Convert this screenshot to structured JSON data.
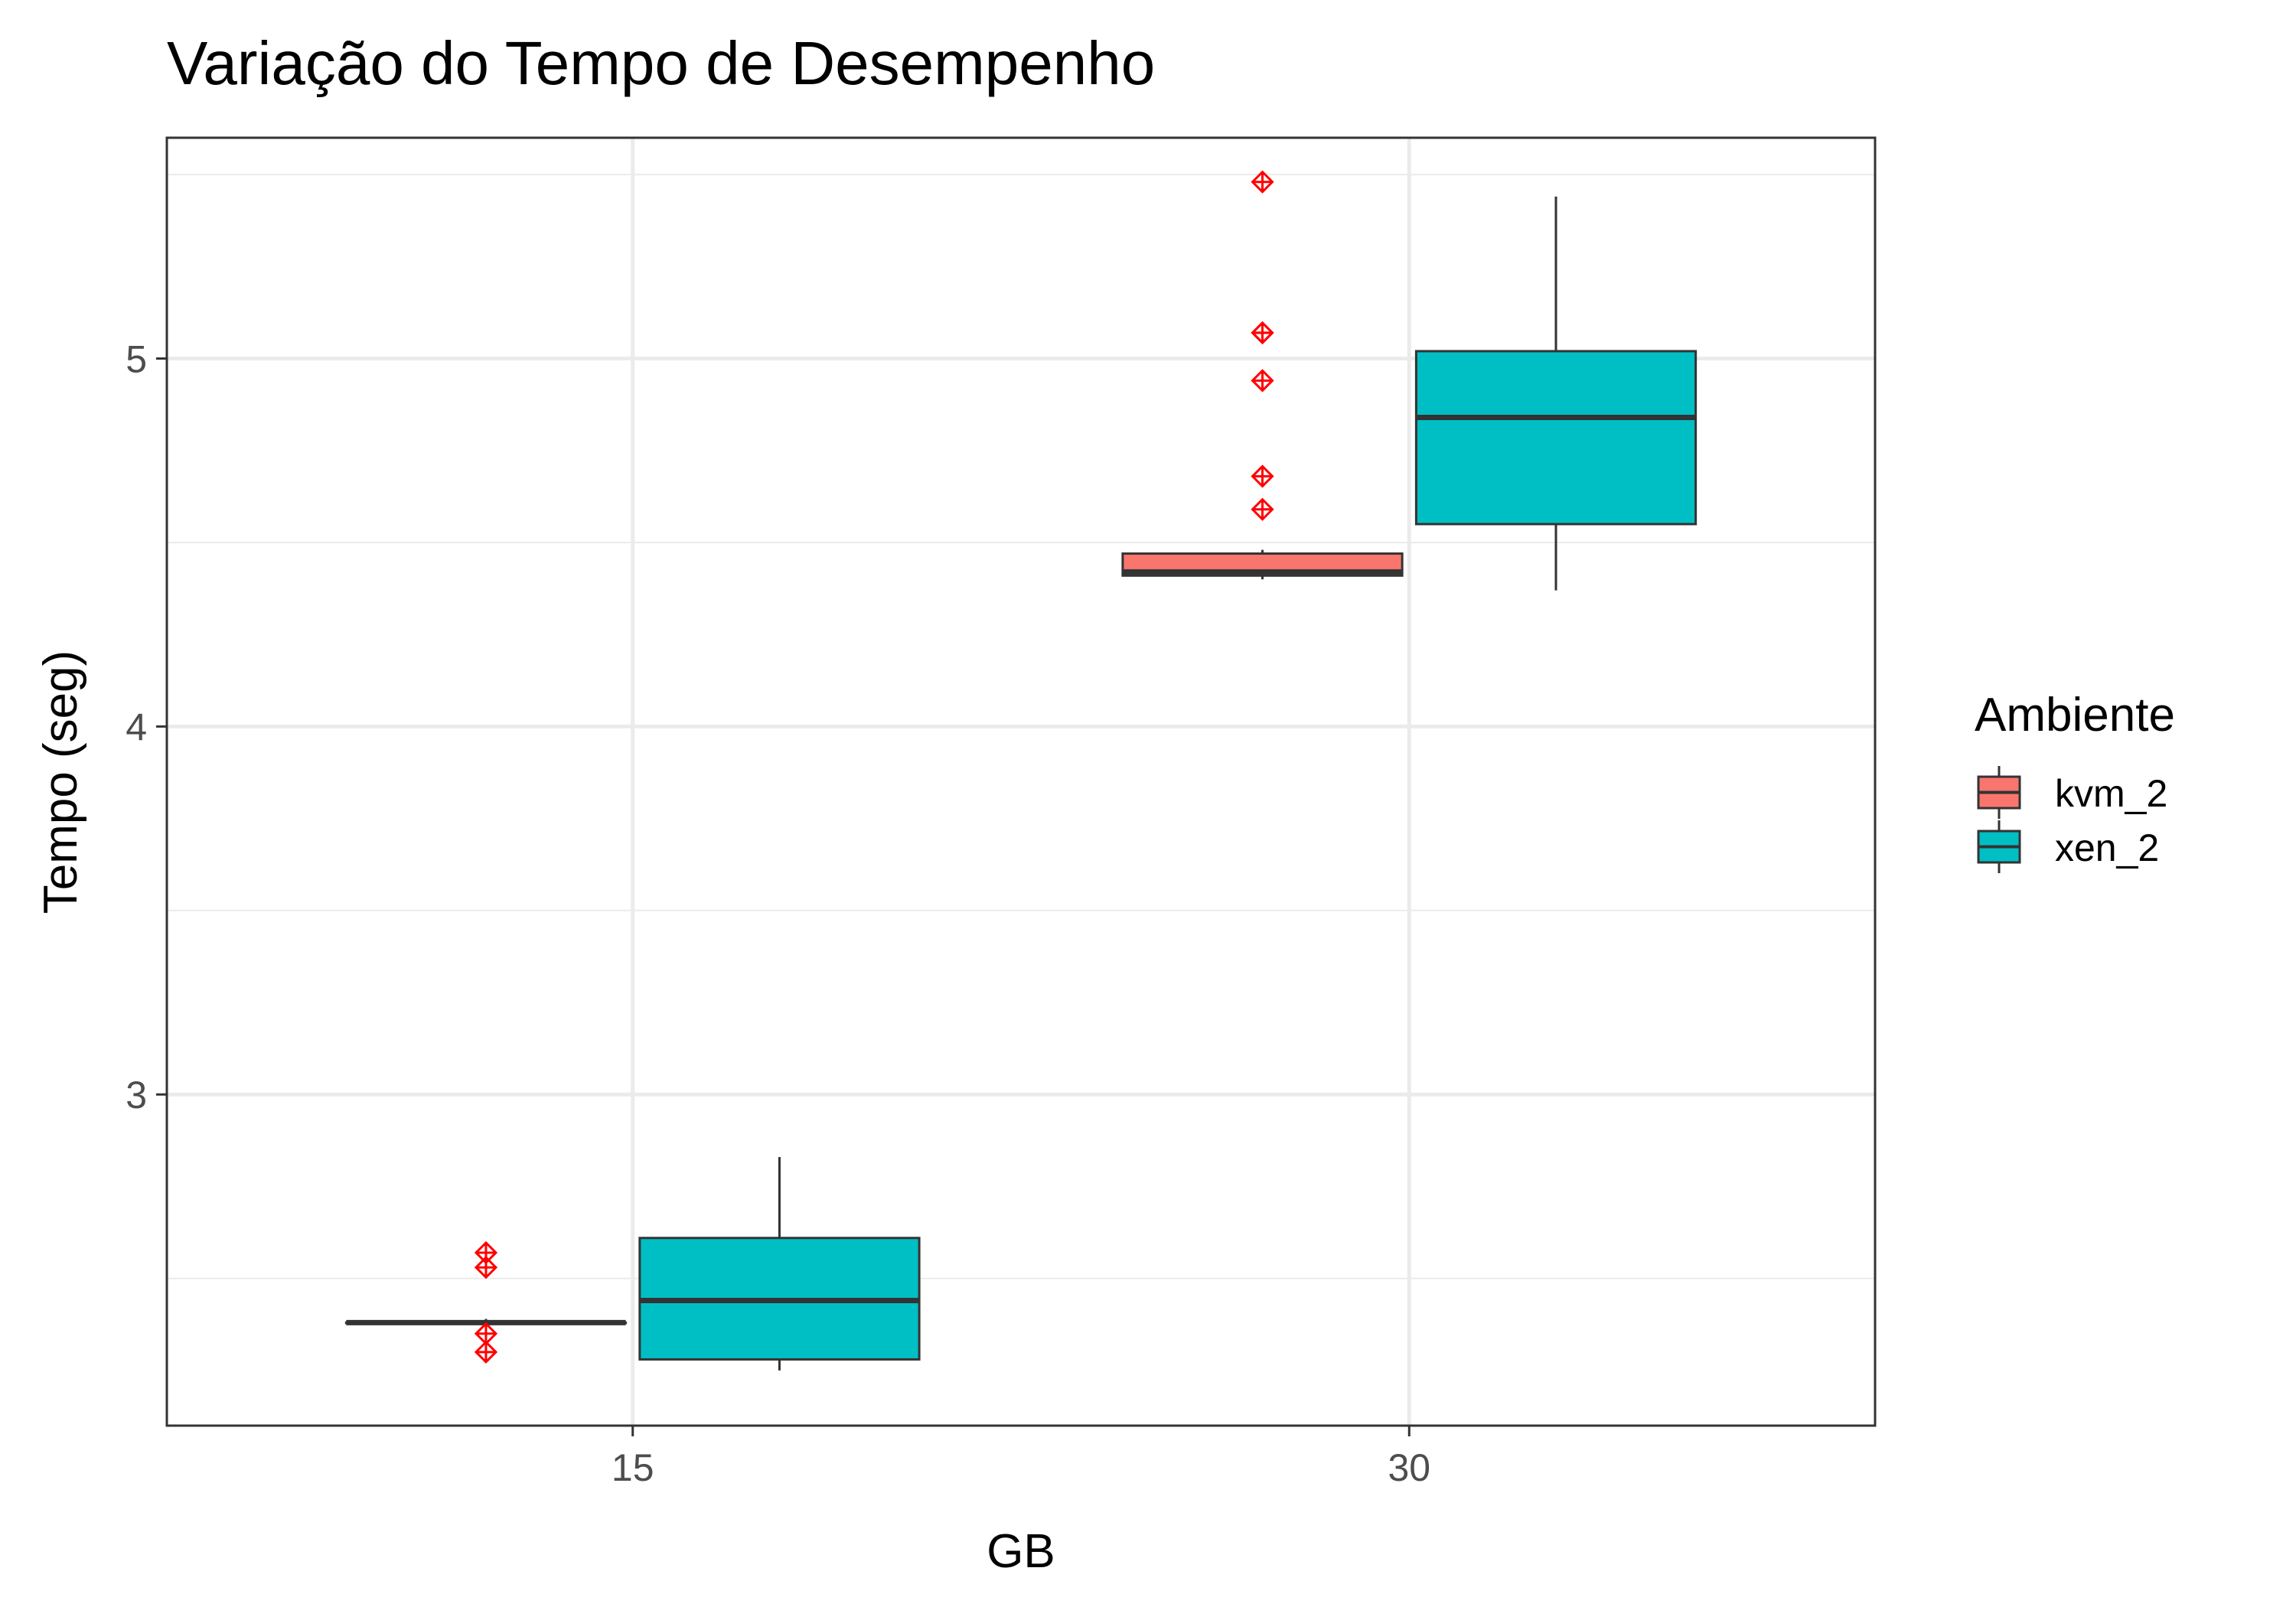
{
  "chart_data": {
    "type": "boxplot",
    "title": "Variação do Tempo de Desempenho",
    "xlabel": "GB",
    "ylabel": "Tempo (seg)",
    "categories": [
      "15",
      "30"
    ],
    "ylim": [
      2.1,
      5.6
    ],
    "y_ticks": [
      3,
      4,
      5
    ],
    "y_minor_ticks": [
      2.5,
      3.5,
      4.5,
      5.5
    ],
    "grid": true,
    "legend": {
      "title": "Ambiente",
      "position": "right"
    },
    "outlier_color": "#ff0000",
    "series": [
      {
        "name": "kvm_2",
        "color": "#f8766d",
        "boxes": [
          {
            "category": "15",
            "whisker_low": 2.38,
            "q1": 2.38,
            "median": 2.38,
            "q3": 2.38,
            "whisker_high": 2.39,
            "outliers": [
              2.3,
              2.35,
              2.53,
              2.57
            ]
          },
          {
            "category": "30",
            "whisker_low": 4.4,
            "q1": 4.41,
            "median": 4.42,
            "q3": 4.47,
            "whisker_high": 4.48,
            "outliers": [
              4.59,
              4.68,
              4.94,
              5.07,
              5.07,
              5.48
            ]
          }
        ]
      },
      {
        "name": "xen_2",
        "color": "#00bfc4",
        "boxes": [
          {
            "category": "15",
            "whisker_low": 2.25,
            "q1": 2.28,
            "median": 2.44,
            "q3": 2.61,
            "whisker_high": 2.83
          },
          {
            "category": "30",
            "whisker_low": 4.37,
            "q1": 4.55,
            "median": 4.84,
            "q3": 5.02,
            "whisker_high": 5.44
          }
        ]
      }
    ]
  }
}
